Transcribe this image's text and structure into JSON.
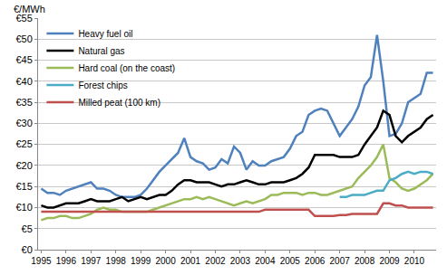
{
  "chart_data": {
    "type": "line",
    "y_label": "€/MWh",
    "categories": [
      "1995",
      null,
      null,
      null,
      "1996",
      null,
      null,
      null,
      "1997",
      null,
      null,
      null,
      "1998",
      null,
      null,
      null,
      "1999",
      null,
      null,
      null,
      "2000",
      null,
      null,
      null,
      "2001",
      null,
      null,
      null,
      "2002",
      null,
      null,
      null,
      "2003",
      null,
      null,
      null,
      "2004",
      null,
      null,
      null,
      "2005",
      null,
      null,
      null,
      "2006",
      null,
      null,
      null,
      "2007",
      null,
      null,
      null,
      "2008",
      null,
      null,
      null,
      "2009",
      null,
      null,
      null,
      "2010",
      null,
      null,
      null
    ],
    "series": [
      {
        "name": "Heavy fuel oil",
        "color": "#4f81bd",
        "values": [
          14.5,
          13.5,
          13.5,
          13,
          14,
          14.5,
          15,
          15.5,
          16,
          14.5,
          14.5,
          14,
          13,
          12.5,
          12.5,
          12.5,
          13,
          14.5,
          16.5,
          18.5,
          20,
          21.5,
          23,
          26.5,
          22,
          21,
          20.5,
          19,
          19.5,
          21.5,
          20.5,
          24.5,
          23,
          19,
          21,
          20,
          20,
          21,
          21.5,
          22,
          24,
          27,
          28,
          32,
          33,
          33.5,
          33,
          30,
          27,
          29,
          31,
          34,
          39,
          41,
          51,
          40,
          27,
          27.5,
          30,
          35,
          36,
          37,
          42,
          42
        ]
      },
      {
        "name": "Natural gas",
        "color": "#000000",
        "values": [
          10.5,
          10,
          10,
          10.5,
          11,
          11,
          11,
          11.5,
          12,
          11.5,
          11.5,
          11.5,
          12,
          12.5,
          11.5,
          12,
          12.5,
          12,
          12.5,
          13,
          13,
          14,
          15.5,
          16.5,
          16.5,
          16,
          16,
          16,
          15.5,
          15,
          15.5,
          15.5,
          16,
          16.5,
          16,
          15.5,
          15.5,
          16,
          16,
          16,
          16.5,
          17,
          18,
          19.5,
          22.5,
          22.5,
          22.5,
          22.5,
          22,
          22,
          22,
          22.5,
          25,
          27,
          29,
          33,
          32,
          27,
          25.5,
          27,
          28,
          29,
          31,
          32
        ]
      },
      {
        "name": "Hard coal (on the coast)",
        "color": "#9bbb59",
        "values": [
          7,
          7.5,
          7.5,
          8,
          8,
          7.5,
          7.5,
          8,
          8.5,
          9.5,
          10,
          9.5,
          9.5,
          9,
          9,
          9,
          9,
          9,
          9.5,
          10,
          10.5,
          11,
          11.5,
          12,
          12,
          12.5,
          12,
          12.5,
          12,
          11.5,
          11,
          10.5,
          11,
          11.5,
          11,
          11.5,
          12,
          13,
          13,
          13.5,
          13.5,
          13.5,
          13,
          13.5,
          13.5,
          13,
          13,
          13.5,
          14,
          14.5,
          15,
          17,
          18.5,
          20,
          22,
          25,
          17,
          16,
          14.5,
          14,
          14.5,
          15.5,
          16.5,
          18
        ]
      },
      {
        "name": "Forest chips",
        "color": "#4bacc6",
        "values": [
          null,
          null,
          null,
          null,
          null,
          null,
          null,
          null,
          null,
          null,
          null,
          null,
          null,
          null,
          null,
          null,
          null,
          null,
          null,
          null,
          null,
          null,
          null,
          null,
          null,
          null,
          null,
          null,
          null,
          null,
          null,
          null,
          null,
          null,
          null,
          null,
          null,
          null,
          null,
          null,
          null,
          null,
          null,
          null,
          null,
          null,
          null,
          null,
          12.5,
          12.5,
          13,
          13,
          13,
          13.5,
          14,
          14,
          16.5,
          17,
          18,
          18.5,
          18,
          18.5,
          18.5,
          18
        ]
      },
      {
        "name": "Milled peat (100 km)",
        "color": "#c0504d",
        "values": [
          9,
          9,
          9,
          9,
          9,
          9,
          9,
          9,
          9,
          9,
          9,
          9,
          9,
          9,
          9,
          9,
          9,
          9,
          9,
          9,
          9,
          9,
          9,
          9,
          9,
          9,
          9,
          9,
          9,
          9,
          9,
          9,
          9,
          9,
          9,
          9,
          9.5,
          9.5,
          9.5,
          9.5,
          9.5,
          9.5,
          9.5,
          9.5,
          8,
          8,
          8,
          8,
          8.2,
          8.2,
          8.5,
          8.5,
          8.5,
          8.5,
          8.5,
          11,
          11,
          10.5,
          10.5,
          10,
          10,
          10,
          10,
          10
        ]
      }
    ],
    "ylim": [
      0,
      55
    ],
    "yticks": [
      {
        "value": 0,
        "label": "€0"
      },
      {
        "value": 5,
        "label": "€5"
      },
      {
        "value": 10,
        "label": "€10"
      },
      {
        "value": 15,
        "label": "€15"
      },
      {
        "value": 20,
        "label": "€20"
      },
      {
        "value": 25,
        "label": "€25"
      },
      {
        "value": 30,
        "label": "€30"
      },
      {
        "value": 35,
        "label": "€35"
      },
      {
        "value": 40,
        "label": "€40"
      },
      {
        "value": 45,
        "label": "€45"
      },
      {
        "value": 50,
        "label": "€50"
      },
      {
        "value": 55,
        "label": "€55"
      }
    ],
    "grid": true,
    "legend": "top-left"
  }
}
